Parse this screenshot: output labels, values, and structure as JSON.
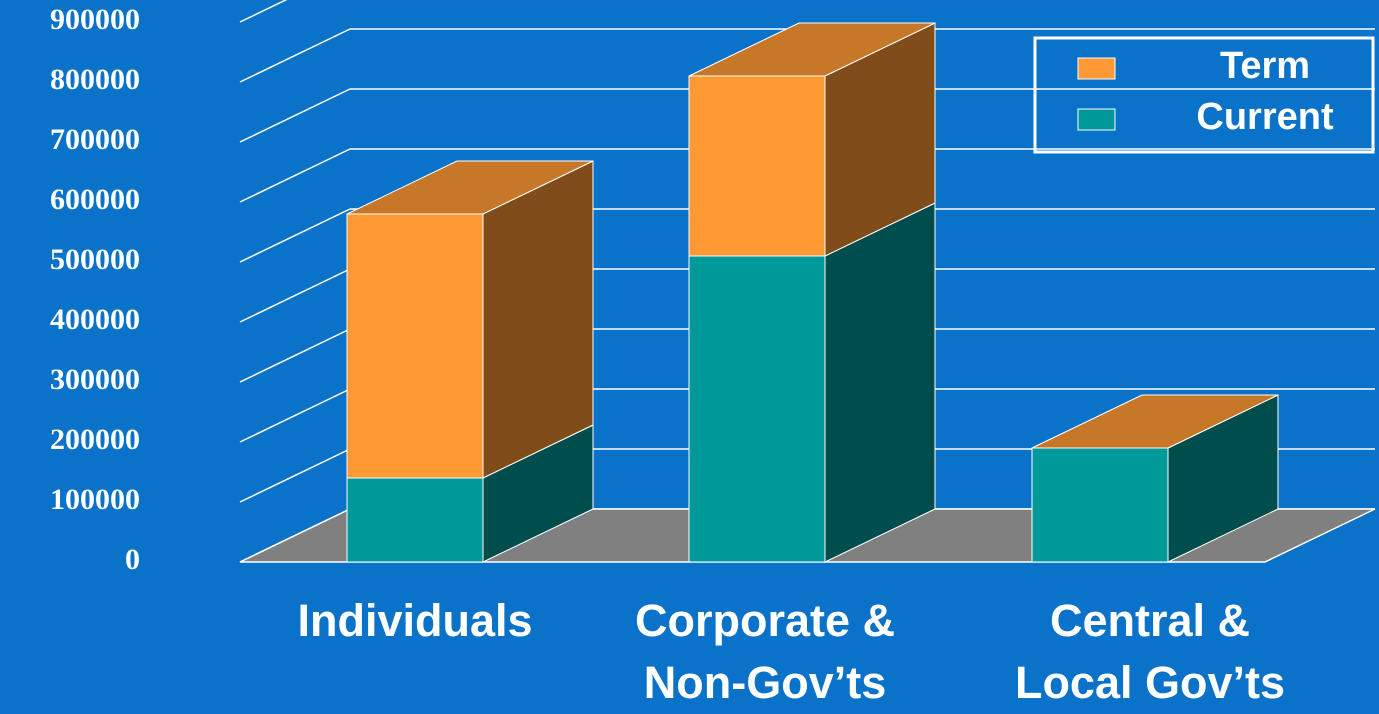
{
  "chart_data": {
    "type": "bar3d_stacked",
    "categories": [
      "Individuals",
      "Corporate &\nNon-Gov’ts",
      "Central &\nLocal Gov’ts"
    ],
    "series": [
      {
        "name": "Current",
        "color": "#009999",
        "values": [
          140000,
          510000,
          190000
        ]
      },
      {
        "name": "Term",
        "color": "#ff9933",
        "values": [
          440000,
          300000,
          0
        ]
      }
    ],
    "ylim": [
      0,
      900000
    ],
    "yticks": [
      0,
      100000,
      200000,
      300000,
      400000,
      500000,
      600000,
      700000,
      800000,
      900000
    ],
    "grid": true,
    "legend": "upper right"
  }
}
